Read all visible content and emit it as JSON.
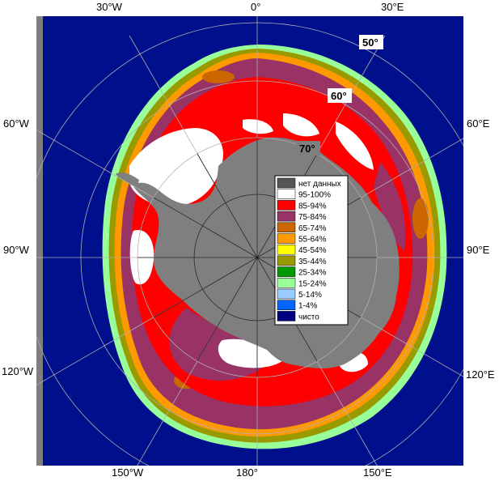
{
  "map": {
    "projection": "south-polar-stereographic",
    "background_colors": {
      "ocean": "#000f8c",
      "land": "#7f7f7f",
      "no_data_border": "#808080"
    }
  },
  "lon_labels": {
    "w30": "30°W",
    "e0": "0°",
    "e30": "30°E",
    "w60": "60°W",
    "e60": "60°E",
    "w90": "90°W",
    "e90": "90°E",
    "w120": "120°W",
    "e120": "120°E",
    "w150": "150°W",
    "e180": "180°",
    "e150": "150°E"
  },
  "lat_labels": {
    "l50": "50°",
    "l60": "60°",
    "l70": "70°"
  },
  "legend": {
    "items": [
      {
        "label": "нет данных",
        "color": "#555555"
      },
      {
        "label": "95-100%",
        "color": "#ffffff"
      },
      {
        "label": "85-94%",
        "color": "#ff0000"
      },
      {
        "label": "75-84%",
        "color": "#993366"
      },
      {
        "label": "65-74%",
        "color": "#cc6600"
      },
      {
        "label": "55-64%",
        "color": "#ff9900"
      },
      {
        "label": "45-54%",
        "color": "#ffff00"
      },
      {
        "label": "35-44%",
        "color": "#999900"
      },
      {
        "label": "25-34%",
        "color": "#009900"
      },
      {
        "label": "15-24%",
        "color": "#99ff99"
      },
      {
        "label": "5-14%",
        "color": "#99ccff"
      },
      {
        "label": "1-4%",
        "color": "#0066ff"
      },
      {
        "label": "чисто",
        "color": "#000080"
      }
    ]
  }
}
